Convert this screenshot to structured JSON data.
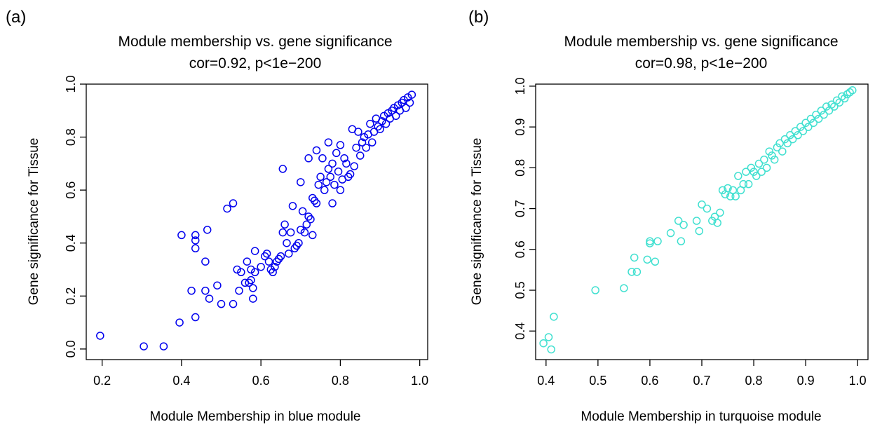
{
  "chart_data": [
    {
      "type": "scatter",
      "panel_label": "(a)",
      "title": "Module membership vs. gene significance",
      "subtitle": "cor=0.92, p<1e−200",
      "xlabel": "Module Membership in blue module",
      "ylabel": "Gene significance for Tissue",
      "xlim": [
        0.16,
        1.02
      ],
      "ylim": [
        -0.04,
        1.0
      ],
      "xticks": [
        0.2,
        0.4,
        0.6,
        0.8,
        1.0
      ],
      "xtick_labels": [
        "0.2",
        "0.4",
        "0.6",
        "0.8",
        "1.0"
      ],
      "yticks": [
        0.0,
        0.2,
        0.4,
        0.6,
        0.8,
        1.0
      ],
      "ytick_labels": [
        "0.0",
        "0.2",
        "0.4",
        "0.6",
        "0.8",
        "1.0"
      ],
      "grid": false,
      "marker": "open-circle",
      "color": "#0000ee",
      "x": [
        0.195,
        0.305,
        0.355,
        0.395,
        0.4,
        0.425,
        0.435,
        0.435,
        0.435,
        0.435,
        0.46,
        0.46,
        0.465,
        0.47,
        0.49,
        0.5,
        0.515,
        0.53,
        0.53,
        0.54,
        0.545,
        0.55,
        0.56,
        0.565,
        0.57,
        0.575,
        0.575,
        0.58,
        0.58,
        0.585,
        0.585,
        0.6,
        0.61,
        0.615,
        0.62,
        0.625,
        0.63,
        0.635,
        0.64,
        0.645,
        0.65,
        0.655,
        0.655,
        0.66,
        0.665,
        0.67,
        0.675,
        0.68,
        0.685,
        0.69,
        0.695,
        0.7,
        0.7,
        0.705,
        0.71,
        0.715,
        0.72,
        0.72,
        0.725,
        0.73,
        0.73,
        0.735,
        0.74,
        0.74,
        0.745,
        0.75,
        0.755,
        0.76,
        0.765,
        0.77,
        0.77,
        0.775,
        0.78,
        0.78,
        0.785,
        0.79,
        0.795,
        0.8,
        0.8,
        0.805,
        0.81,
        0.815,
        0.82,
        0.825,
        0.83,
        0.835,
        0.84,
        0.845,
        0.85,
        0.855,
        0.86,
        0.865,
        0.87,
        0.875,
        0.88,
        0.885,
        0.89,
        0.895,
        0.9,
        0.905,
        0.91,
        0.915,
        0.92,
        0.925,
        0.93,
        0.935,
        0.94,
        0.945,
        0.95,
        0.955,
        0.96,
        0.965,
        0.97,
        0.975,
        0.98
      ],
      "y": [
        0.05,
        0.01,
        0.01,
        0.1,
        0.43,
        0.22,
        0.12,
        0.38,
        0.41,
        0.43,
        0.22,
        0.33,
        0.45,
        0.19,
        0.24,
        0.17,
        0.53,
        0.55,
        0.17,
        0.3,
        0.22,
        0.29,
        0.25,
        0.33,
        0.25,
        0.26,
        0.3,
        0.23,
        0.19,
        0.29,
        0.37,
        0.31,
        0.35,
        0.36,
        0.33,
        0.3,
        0.29,
        0.31,
        0.33,
        0.34,
        0.35,
        0.44,
        0.68,
        0.47,
        0.4,
        0.36,
        0.44,
        0.54,
        0.38,
        0.39,
        0.4,
        0.45,
        0.63,
        0.52,
        0.44,
        0.47,
        0.5,
        0.72,
        0.49,
        0.43,
        0.57,
        0.56,
        0.55,
        0.75,
        0.62,
        0.65,
        0.72,
        0.6,
        0.63,
        0.68,
        0.78,
        0.65,
        0.7,
        0.55,
        0.62,
        0.74,
        0.67,
        0.6,
        0.77,
        0.64,
        0.72,
        0.7,
        0.65,
        0.66,
        0.83,
        0.69,
        0.76,
        0.82,
        0.73,
        0.78,
        0.8,
        0.76,
        0.81,
        0.85,
        0.78,
        0.82,
        0.87,
        0.84,
        0.83,
        0.86,
        0.88,
        0.85,
        0.89,
        0.87,
        0.9,
        0.91,
        0.88,
        0.92,
        0.9,
        0.93,
        0.94,
        0.91,
        0.95,
        0.93,
        0.96
      ]
    },
    {
      "type": "scatter",
      "panel_label": "(b)",
      "title": "Module membership vs. gene significance",
      "subtitle": "cor=0.98, p<1e−200",
      "xlabel": "Module Membership in turquoise module",
      "ylabel": "Gene significance for Tissue",
      "xlim": [
        0.38,
        1.02
      ],
      "ylim": [
        0.33,
        1.005
      ],
      "xticks": [
        0.4,
        0.5,
        0.6,
        0.7,
        0.8,
        0.9,
        1.0
      ],
      "xtick_labels": [
        "0.4",
        "0.5",
        "0.6",
        "0.7",
        "0.8",
        "0.9",
        "1.0"
      ],
      "yticks": [
        0.4,
        0.5,
        0.6,
        0.7,
        0.8,
        0.9,
        1.0
      ],
      "ytick_labels": [
        "0.4",
        "0.5",
        "0.6",
        "0.7",
        "0.8",
        "0.9",
        "1.0"
      ],
      "grid": false,
      "marker": "open-circle",
      "color": "#40e0d0",
      "x": [
        0.395,
        0.405,
        0.41,
        0.415,
        0.495,
        0.55,
        0.565,
        0.57,
        0.575,
        0.595,
        0.6,
        0.6,
        0.61,
        0.615,
        0.64,
        0.655,
        0.66,
        0.665,
        0.69,
        0.695,
        0.7,
        0.71,
        0.72,
        0.725,
        0.73,
        0.735,
        0.74,
        0.745,
        0.75,
        0.755,
        0.76,
        0.765,
        0.77,
        0.775,
        0.78,
        0.785,
        0.79,
        0.795,
        0.8,
        0.805,
        0.81,
        0.815,
        0.82,
        0.825,
        0.83,
        0.835,
        0.84,
        0.845,
        0.85,
        0.855,
        0.86,
        0.865,
        0.87,
        0.875,
        0.88,
        0.885,
        0.89,
        0.895,
        0.9,
        0.905,
        0.91,
        0.915,
        0.92,
        0.925,
        0.93,
        0.935,
        0.94,
        0.945,
        0.95,
        0.955,
        0.96,
        0.965,
        0.97,
        0.975,
        0.98,
        0.985,
        0.99
      ],
      "y": [
        0.37,
        0.385,
        0.355,
        0.435,
        0.5,
        0.505,
        0.545,
        0.58,
        0.545,
        0.575,
        0.615,
        0.62,
        0.57,
        0.62,
        0.64,
        0.67,
        0.62,
        0.66,
        0.67,
        0.645,
        0.71,
        0.7,
        0.67,
        0.68,
        0.665,
        0.69,
        0.745,
        0.735,
        0.75,
        0.73,
        0.745,
        0.73,
        0.78,
        0.745,
        0.76,
        0.79,
        0.76,
        0.8,
        0.79,
        0.78,
        0.81,
        0.79,
        0.82,
        0.8,
        0.84,
        0.83,
        0.82,
        0.85,
        0.86,
        0.84,
        0.87,
        0.86,
        0.88,
        0.87,
        0.89,
        0.88,
        0.9,
        0.89,
        0.91,
        0.9,
        0.92,
        0.91,
        0.93,
        0.92,
        0.94,
        0.93,
        0.95,
        0.94,
        0.955,
        0.95,
        0.965,
        0.96,
        0.975,
        0.97,
        0.98,
        0.985,
        0.99
      ]
    }
  ]
}
